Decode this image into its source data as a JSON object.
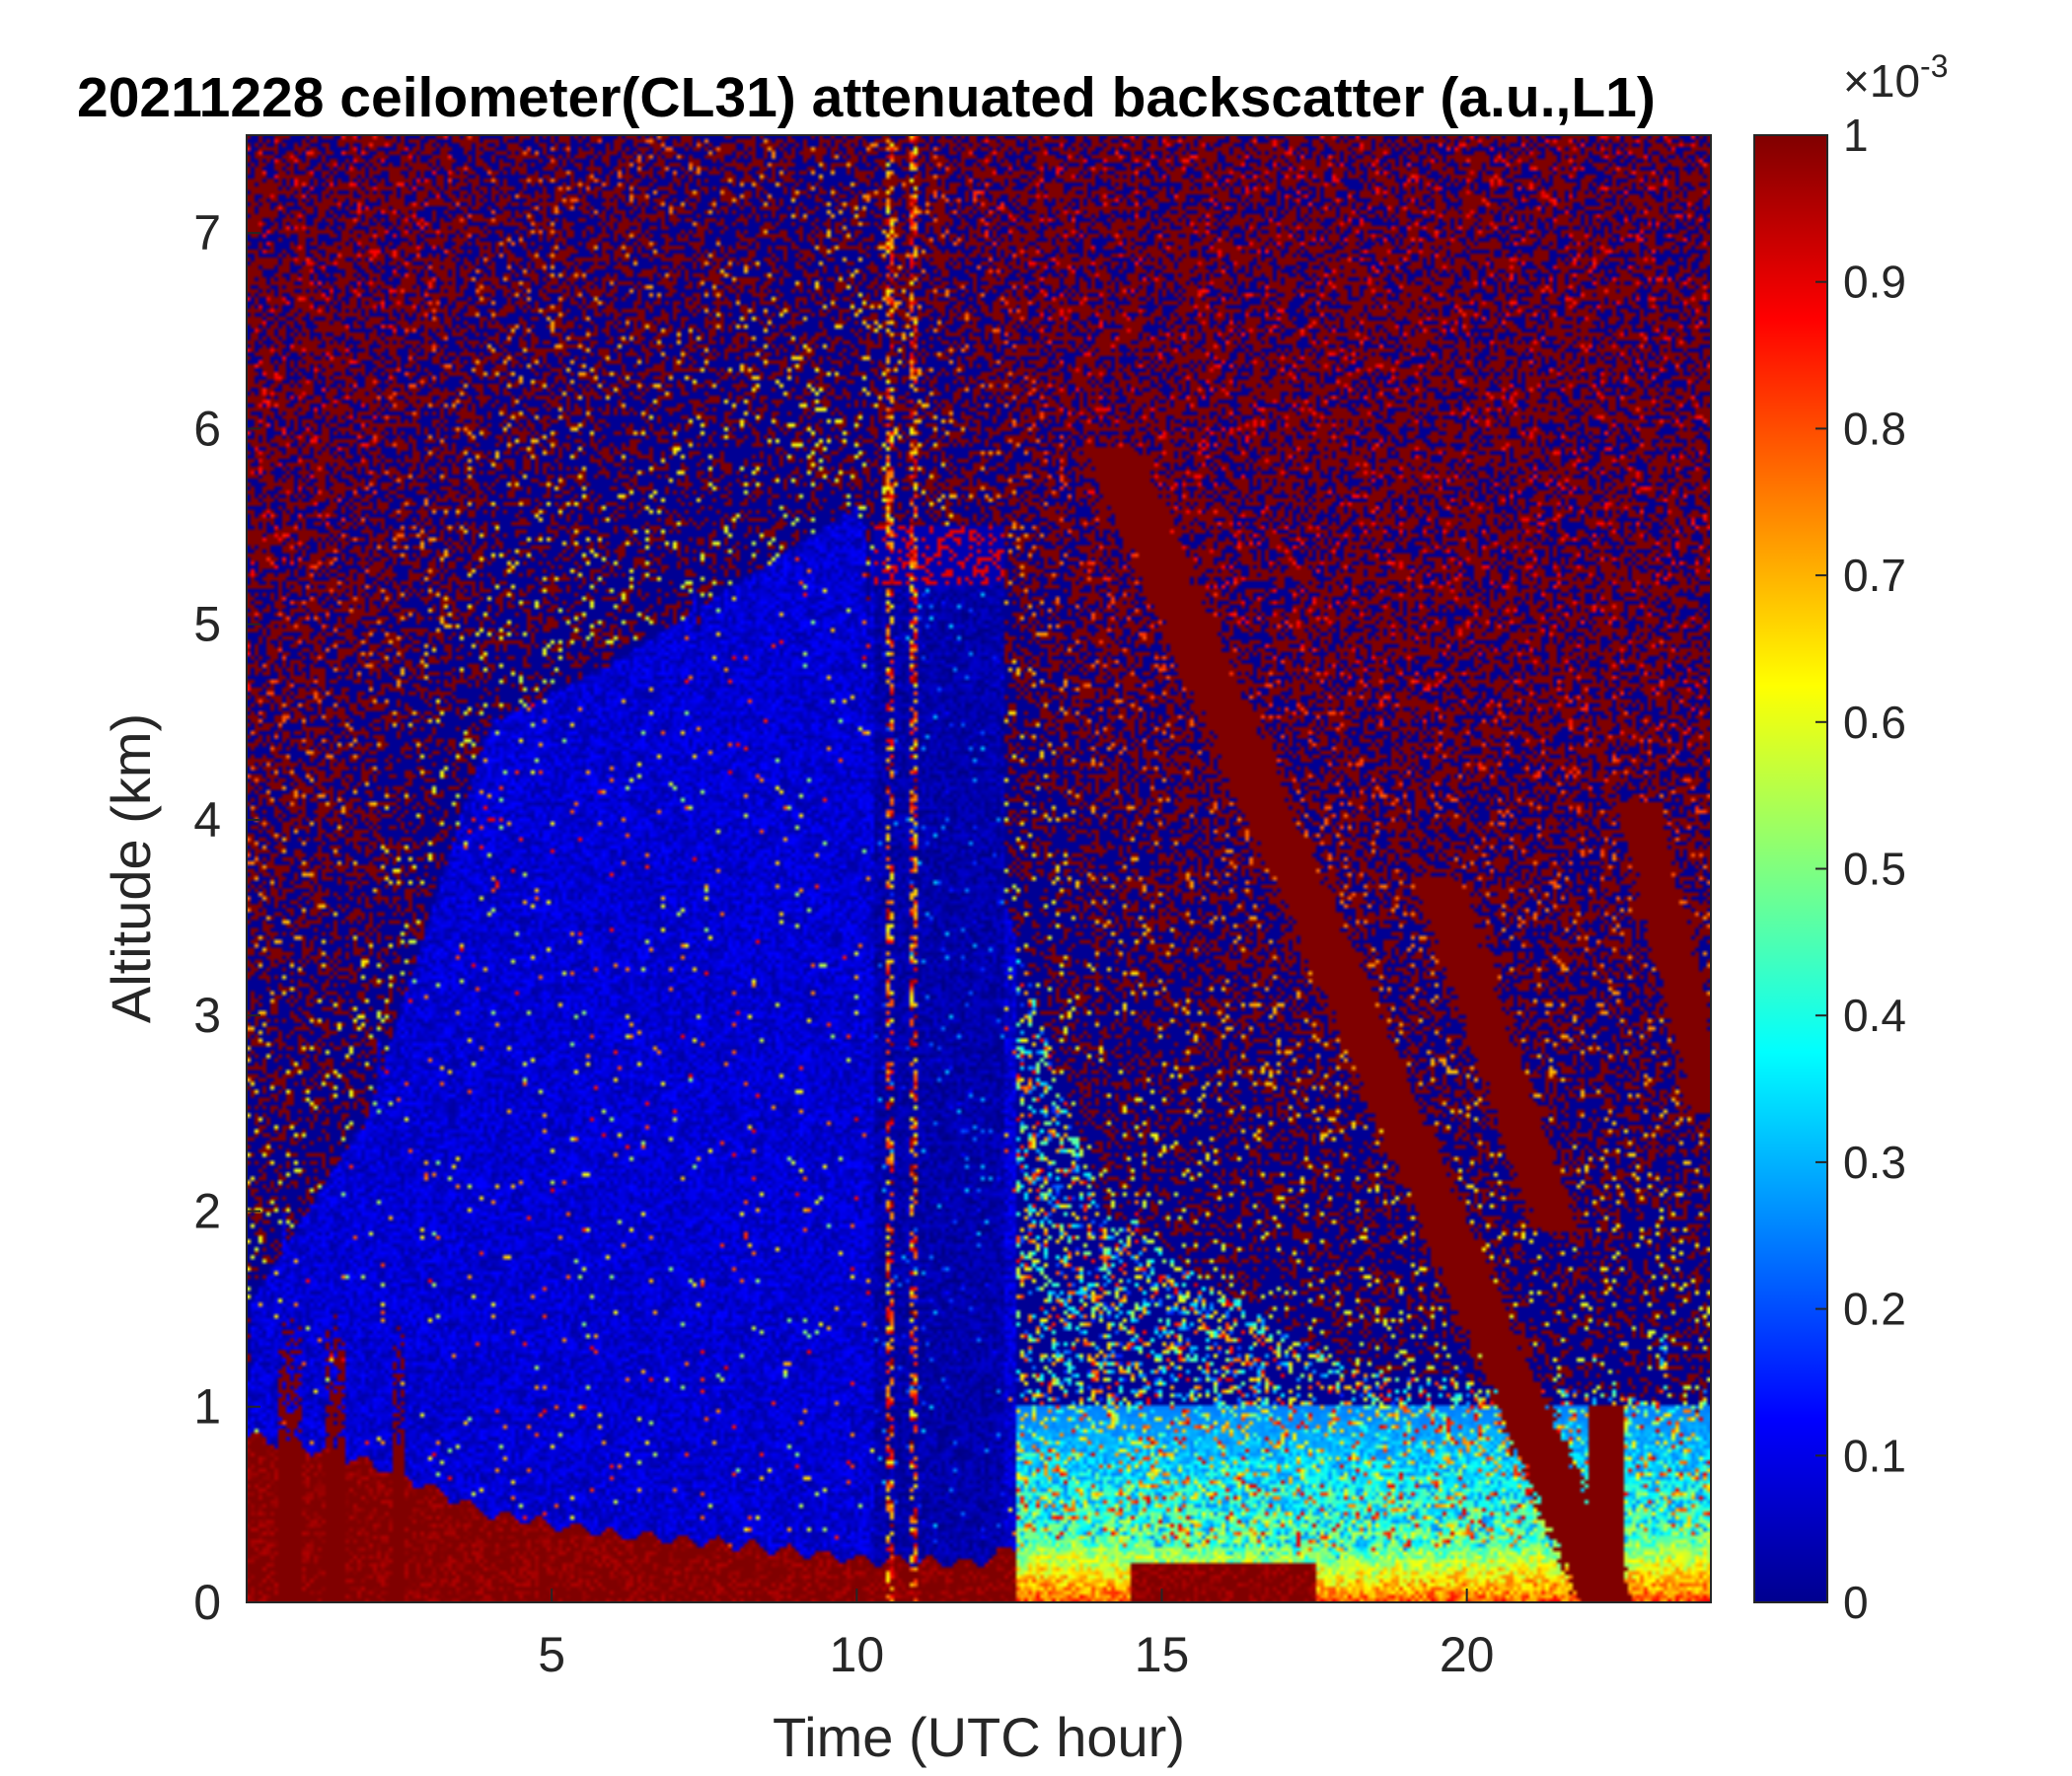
{
  "chart_data": {
    "type": "heatmap",
    "title": "20211228 ceilometer(CL31) attenuated backscatter (a.u.,L1)",
    "xlabel": "Time (UTC hour)",
    "ylabel": "Altitude (km)",
    "xlim": [
      0,
      24
    ],
    "ylim": [
      0,
      7.5
    ],
    "x_ticks": [
      5,
      10,
      15,
      20
    ],
    "y_ticks": [
      0,
      1,
      2,
      3,
      4,
      5,
      6,
      7
    ],
    "colorbar": {
      "colormap": "jet",
      "range": [
        0,
        1
      ],
      "ticks": [
        0,
        0.1,
        0.2,
        0.3,
        0.4,
        0.5,
        0.6,
        0.7,
        0.8,
        0.9,
        1
      ],
      "exponent_label": "×10",
      "exponent": "-3"
    },
    "features": {
      "boundary_layer_top_km": [
        [
          0,
          0.85
        ],
        [
          2,
          0.72
        ],
        [
          4,
          0.45
        ],
        [
          6,
          0.35
        ],
        [
          8,
          0.3
        ],
        [
          10,
          0.22
        ],
        [
          12,
          0.2
        ],
        [
          13,
          0.35
        ],
        [
          15,
          0.3
        ],
        [
          18,
          0.25
        ],
        [
          20,
          0.3
        ],
        [
          24,
          0.35
        ]
      ],
      "upper_noise_boundary_km": [
        [
          0,
          1.5
        ],
        [
          2,
          2.5
        ],
        [
          4,
          4.5
        ],
        [
          6,
          4.8
        ],
        [
          8,
          5.2
        ],
        [
          10,
          5.6
        ],
        [
          12.5,
          3.5
        ],
        [
          14,
          2.0
        ],
        [
          18,
          1.2
        ],
        [
          24,
          1.0
        ]
      ],
      "clear_column_hours": [
        10.3,
        12.4
      ],
      "cloud_streaks": [
        {
          "start": [
            14.2,
            5.9
          ],
          "end": [
            22.3,
            0.0
          ]
        },
        {
          "start": [
            19.5,
            3.7
          ],
          "end": [
            21.5,
            1.9
          ]
        },
        {
          "start": [
            22.8,
            4.1
          ],
          "end": [
            24.0,
            2.5
          ]
        }
      ],
      "precipitation_shafts_hours": [
        [
          0.5,
          0.9
        ],
        [
          1.3,
          1.6
        ],
        [
          2.4,
          2.6
        ],
        [
          22.0,
          22.6
        ]
      ]
    }
  }
}
